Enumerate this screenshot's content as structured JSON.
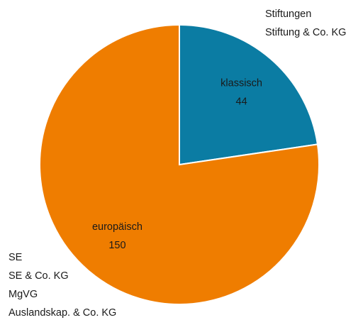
{
  "chart_data": {
    "type": "pie",
    "categories": [
      "klassisch",
      "europäisch"
    ],
    "values": [
      44,
      150
    ],
    "colors": [
      "#0b7ca3",
      "#ef7d00"
    ],
    "annotations": [
      [
        "Stiftungen",
        "Stiftung & Co. KG"
      ],
      [
        "SE",
        "SE & Co. KG",
        "MgVG",
        "Auslandskap. & Co. KG"
      ]
    ]
  }
}
